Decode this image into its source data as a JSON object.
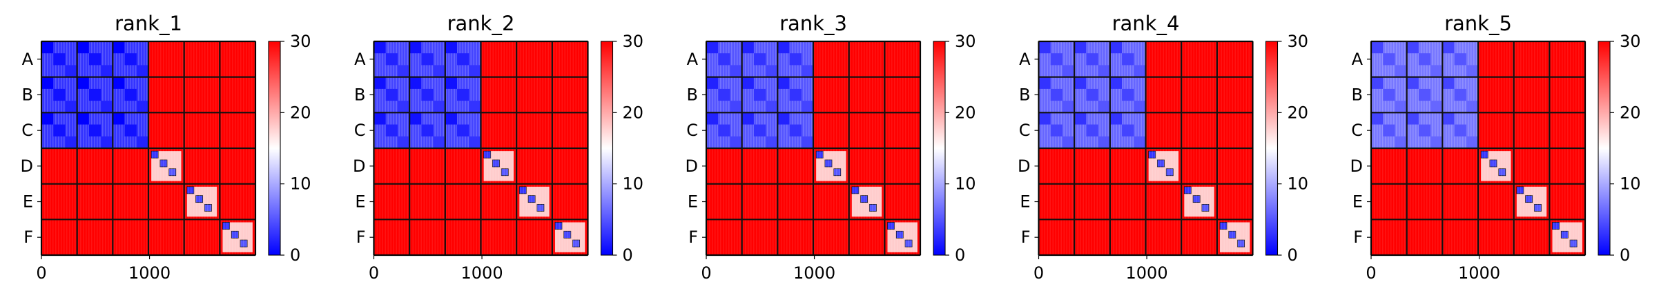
{
  "chart_data": [
    {
      "type": "heatmap",
      "title": "rank_1",
      "row_labels": [
        "A",
        "B",
        "C",
        "D",
        "E",
        "F"
      ],
      "x_ticks": [
        0,
        1000
      ],
      "x_range": [
        0,
        1980
      ],
      "colorbar": {
        "min": 0,
        "max": 30,
        "ticks": [
          0,
          10,
          20,
          30
        ],
        "colors": [
          "#0000ff",
          "#ffffff",
          "#ff0000"
        ]
      },
      "block_size": 330,
      "within_group_low_value": 3,
      "between_group_value": 30,
      "diag_group_indices": [
        3,
        4,
        5
      ]
    },
    {
      "type": "heatmap",
      "title": "rank_2",
      "row_labels": [
        "A",
        "B",
        "C",
        "D",
        "E",
        "F"
      ],
      "x_ticks": [
        0,
        1000
      ],
      "x_range": [
        0,
        1980
      ],
      "colorbar": {
        "min": 0,
        "max": 30,
        "ticks": [
          0,
          10,
          20,
          30
        ],
        "colors": [
          "#0000ff",
          "#ffffff",
          "#ff0000"
        ]
      },
      "block_size": 330,
      "within_group_low_value": 4,
      "between_group_value": 30,
      "diag_group_indices": [
        3,
        4,
        5
      ]
    },
    {
      "type": "heatmap",
      "title": "rank_3",
      "row_labels": [
        "A",
        "B",
        "C",
        "D",
        "E",
        "F"
      ],
      "x_ticks": [
        0,
        1000
      ],
      "x_range": [
        0,
        1980
      ],
      "colorbar": {
        "min": 0,
        "max": 30,
        "ticks": [
          0,
          10,
          20,
          30
        ],
        "colors": [
          "#0000ff",
          "#ffffff",
          "#ff0000"
        ]
      },
      "block_size": 330,
      "within_group_low_value": 5,
      "between_group_value": 30,
      "diag_group_indices": [
        3,
        4,
        5
      ]
    },
    {
      "type": "heatmap",
      "title": "rank_4",
      "row_labels": [
        "A",
        "B",
        "C",
        "D",
        "E",
        "F"
      ],
      "x_ticks": [
        0,
        1000
      ],
      "x_range": [
        0,
        1980
      ],
      "colorbar": {
        "min": 0,
        "max": 30,
        "ticks": [
          0,
          10,
          20,
          30
        ],
        "colors": [
          "#0000ff",
          "#ffffff",
          "#ff0000"
        ]
      },
      "block_size": 330,
      "within_group_low_value": 6,
      "between_group_value": 30,
      "diag_group_indices": [
        3,
        4,
        5
      ]
    },
    {
      "type": "heatmap",
      "title": "rank_5",
      "row_labels": [
        "A",
        "B",
        "C",
        "D",
        "E",
        "F"
      ],
      "x_ticks": [
        0,
        1000
      ],
      "x_range": [
        0,
        1980
      ],
      "colorbar": {
        "min": 0,
        "max": 30,
        "ticks": [
          0,
          10,
          20,
          30
        ],
        "colors": [
          "#0000ff",
          "#ffffff",
          "#ff0000"
        ]
      },
      "block_size": 330,
      "within_group_low_value": 7,
      "between_group_value": 30,
      "diag_group_indices": [
        3,
        4,
        5
      ]
    }
  ]
}
